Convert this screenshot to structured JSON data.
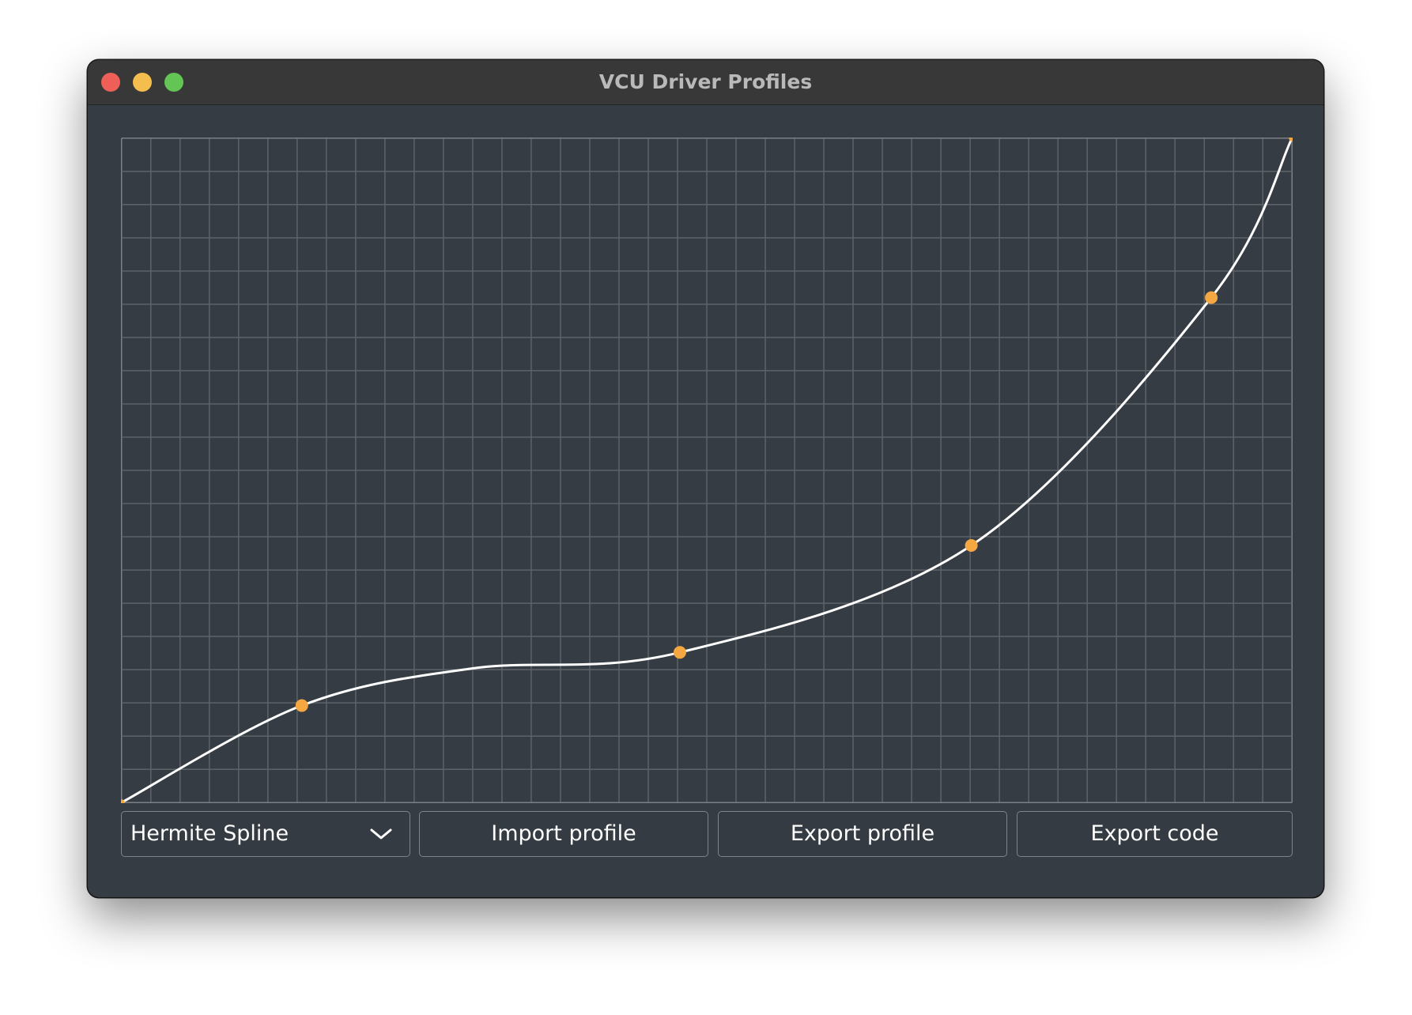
{
  "window": {
    "title": "VCU Driver Profiles"
  },
  "chart_data": {
    "type": "line",
    "grid": true,
    "xlim": [
      0,
      1
    ],
    "ylim": [
      0,
      1
    ],
    "series": [
      {
        "x": [
          0,
          0.154,
          0.3,
          0.477,
          0.726,
          0.931,
          1
        ],
        "y": [
          0,
          0.146,
          0.202,
          0.226,
          0.387,
          0.76,
          1
        ]
      }
    ],
    "control_points": {
      "x": [
        0,
        0.154,
        0.477,
        0.726,
        0.931,
        1
      ],
      "y": [
        0,
        0.146,
        0.226,
        0.387,
        0.76,
        1
      ]
    },
    "colors": {
      "curve": "#ffffff",
      "control_point": "#f5a742",
      "grid": "#5d6368",
      "background": "#353c43"
    }
  },
  "controls": {
    "curve_type": "Hermite Spline",
    "import_label": "Import profile",
    "export_profile_label": "Export profile",
    "export_code_label": "Export code"
  }
}
